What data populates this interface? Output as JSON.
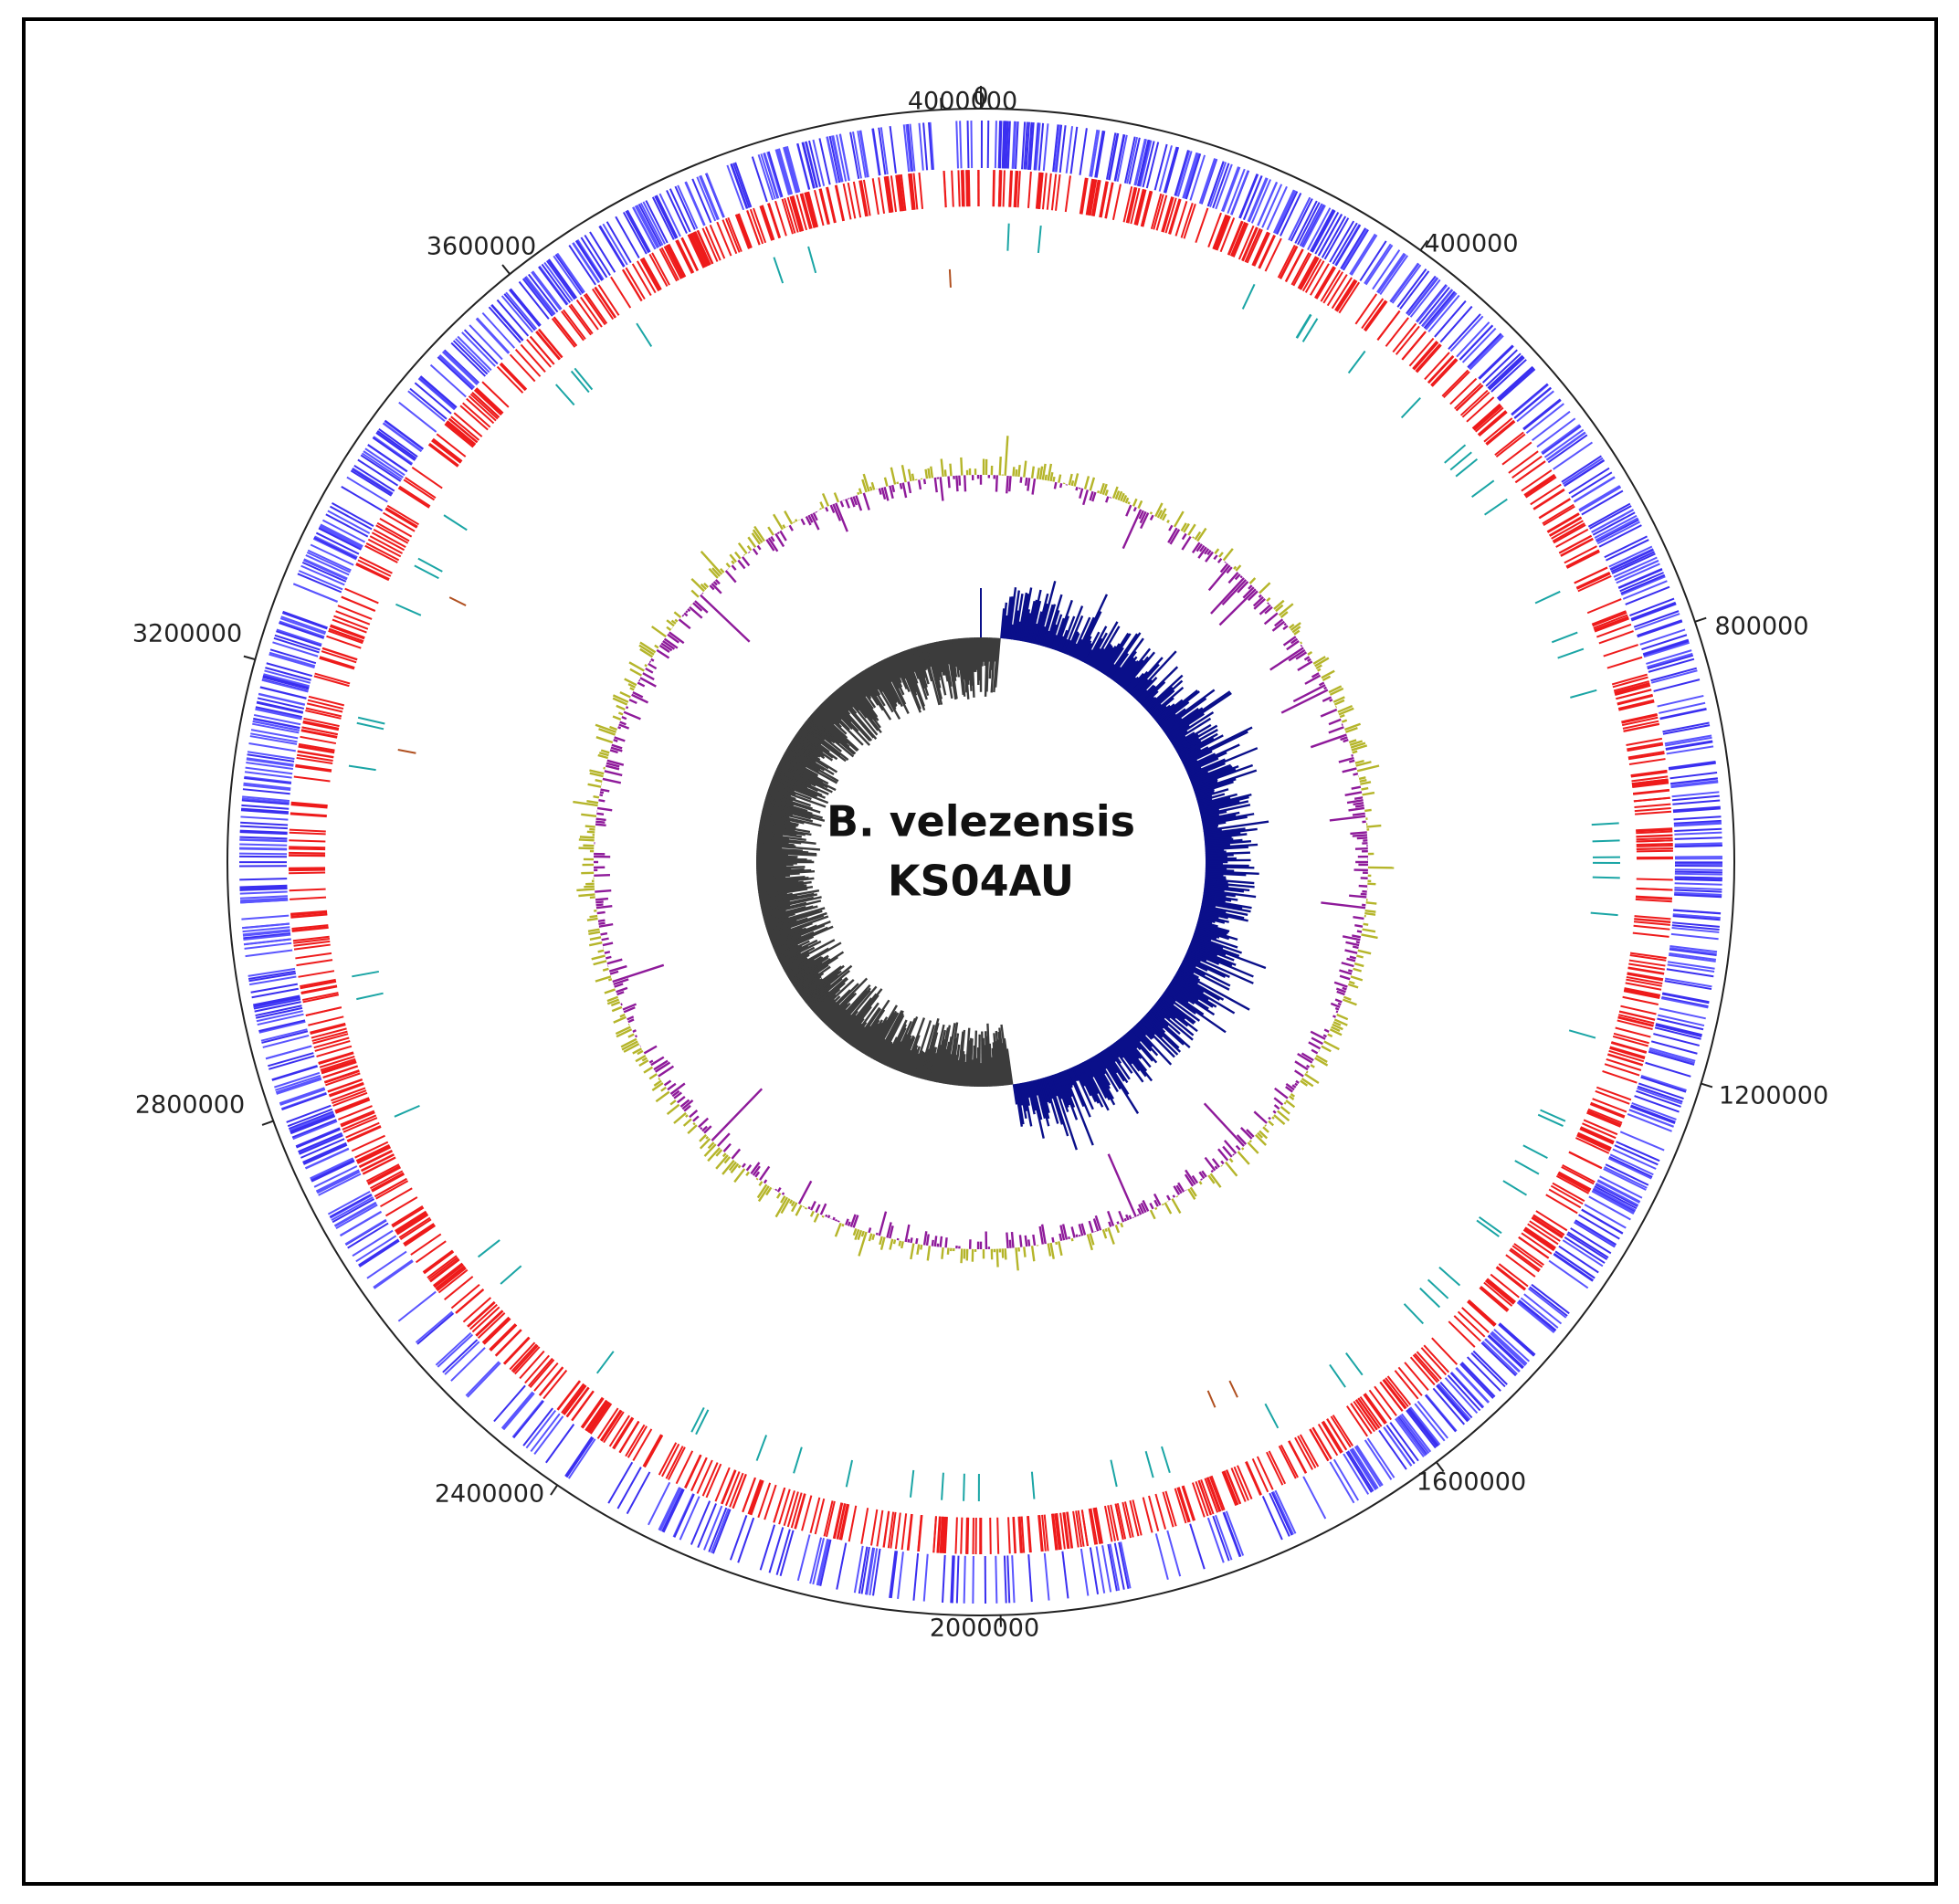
{
  "center_label": {
    "line1": "B. velezensis",
    "line2": "KS04AU"
  },
  "ticks": [
    "0",
    "400000",
    "800000",
    "1200000",
    "1600000",
    "2000000",
    "2400000",
    "2800000",
    "3200000",
    "3600000",
    "4000000"
  ]
}
